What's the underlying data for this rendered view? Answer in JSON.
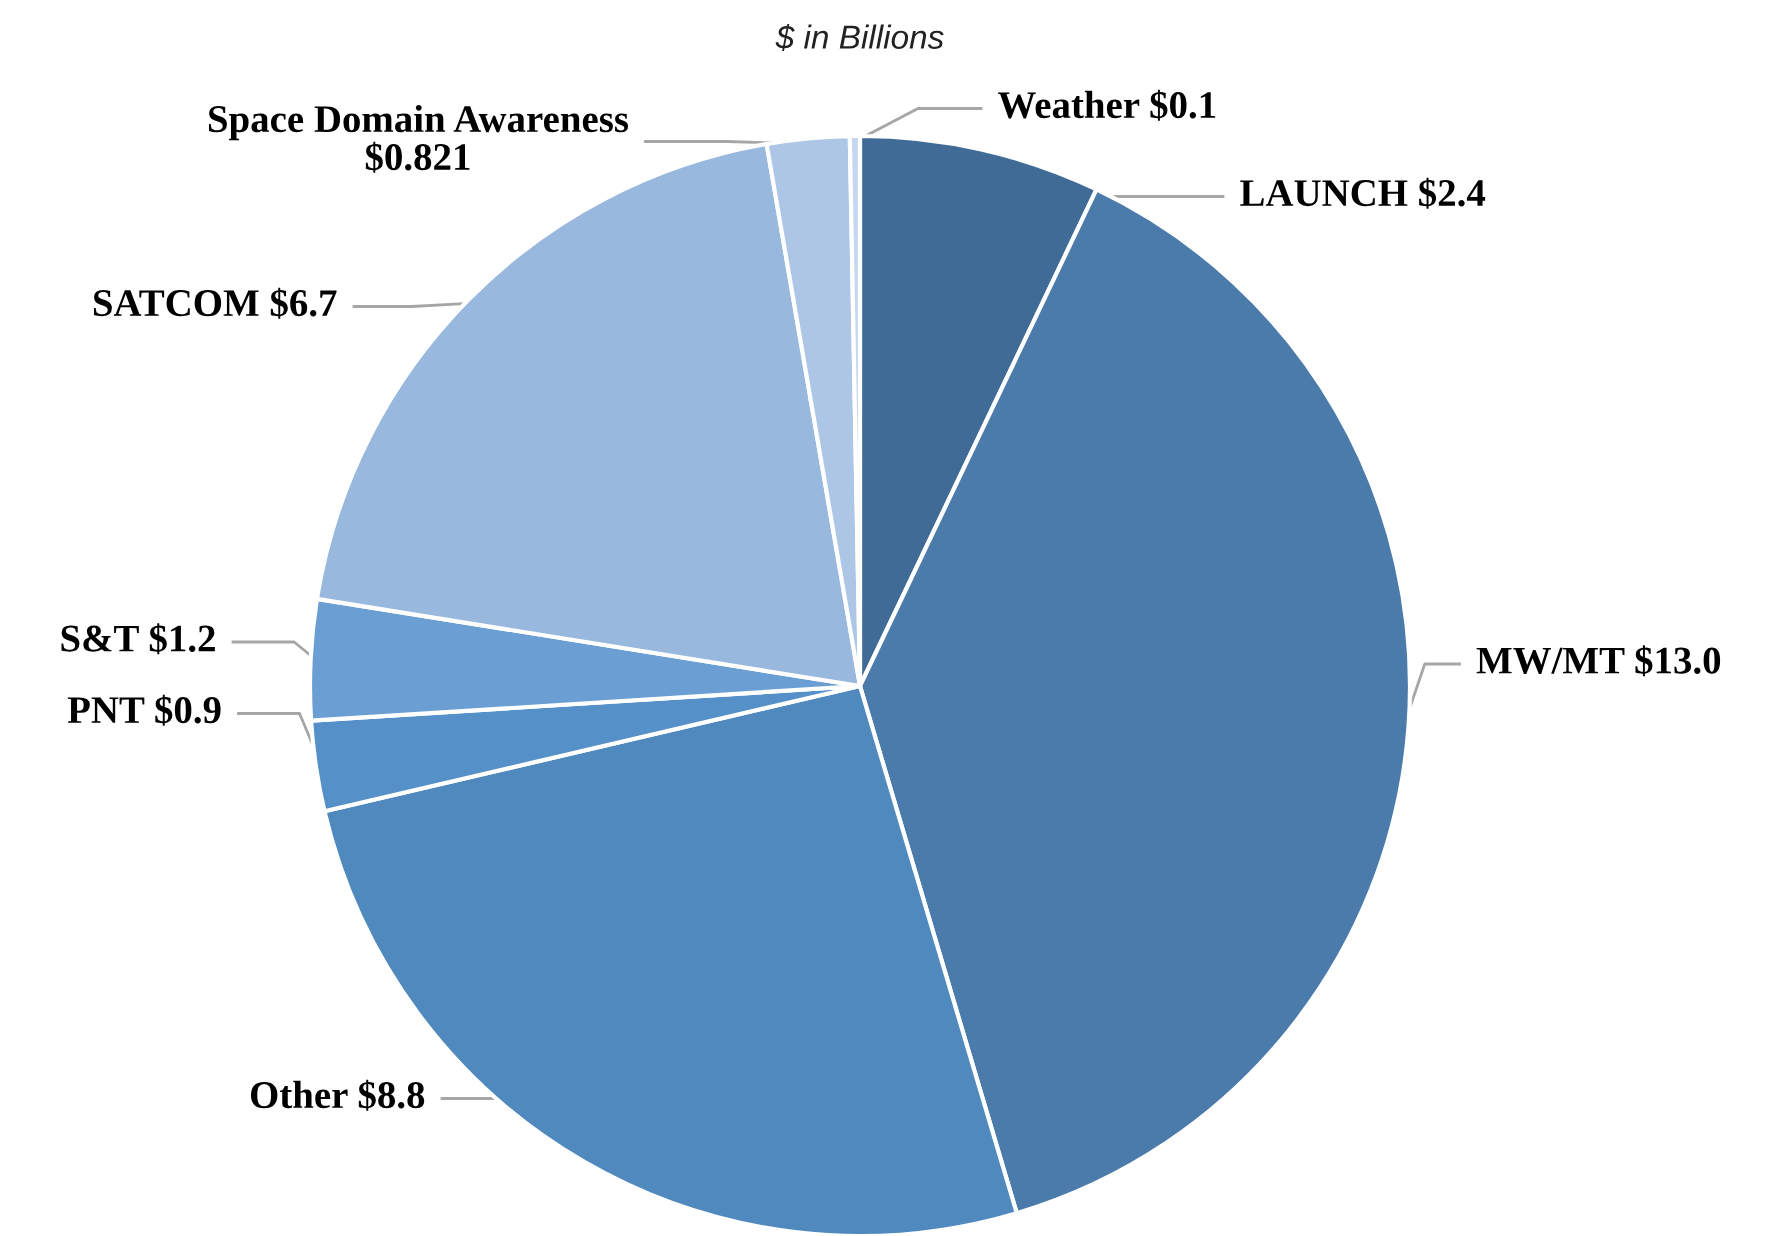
{
  "chart_data": {
    "type": "pie",
    "title": "$ in Billions",
    "categories": [
      "LAUNCH",
      "MW/MT",
      "Other",
      "PNT",
      "S&T",
      "SATCOM",
      "Space Domain Awareness",
      "Weather"
    ],
    "values": [
      2.4,
      13.0,
      8.8,
      0.9,
      1.2,
      6.7,
      0.821,
      0.1
    ],
    "value_labels": [
      "$2.4",
      "$13.0",
      "$8.8",
      "$0.9",
      "$1.2",
      "$6.7",
      "$0.821",
      "$0.1"
    ],
    "colors": [
      "#3f6b96",
      "#4a7bab",
      "#5089bd",
      "#5591c8",
      "#6b9fd3",
      "#98b8de",
      "#adc6e6",
      "#c5d6ee"
    ]
  }
}
